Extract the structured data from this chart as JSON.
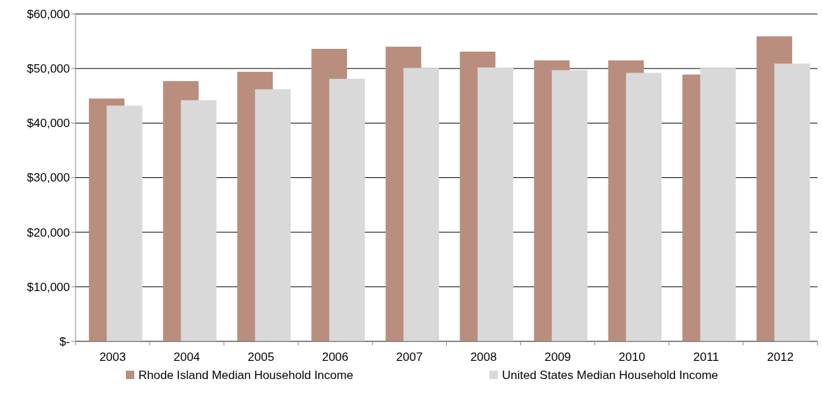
{
  "chart_data": {
    "type": "bar",
    "categories": [
      "2003",
      "2004",
      "2005",
      "2006",
      "2007",
      "2008",
      "2009",
      "2010",
      "2011",
      "2012"
    ],
    "series": [
      {
        "name": "Rhode Island Median Household Income",
        "color": "#b98e7f",
        "values": [
          44500,
          47700,
          49400,
          53600,
          54000,
          53100,
          51500,
          51500,
          48900,
          55900
        ]
      },
      {
        "name": "United States Median Household Income",
        "color": "#d9d9d9",
        "values": [
          43200,
          44200,
          46200,
          48100,
          50100,
          50200,
          49700,
          49200,
          50100,
          50900
        ]
      }
    ],
    "ylim": [
      0,
      60000
    ],
    "yticks": [
      {
        "value": 0,
        "label": "$-"
      },
      {
        "value": 10000,
        "label": "$10,000"
      },
      {
        "value": 20000,
        "label": "$20,000"
      },
      {
        "value": 30000,
        "label": "$30,000"
      },
      {
        "value": 40000,
        "label": "$40,000"
      },
      {
        "value": 50000,
        "label": "$50,000"
      },
      {
        "value": 60000,
        "label": "$60,000"
      }
    ],
    "grid": "y",
    "legend": "bottom"
  }
}
